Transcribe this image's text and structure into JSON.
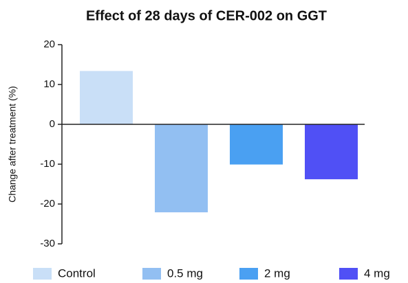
{
  "chart_data": {
    "type": "bar",
    "title": "Effect of 28 days of CER-002 on GGT",
    "y_label": "Change after treatment (%)",
    "categories": [
      "Control",
      "0.5 mg",
      "2 mg",
      "4 mg"
    ],
    "values": [
      13.3,
      -22,
      -10,
      -13.7
    ],
    "colors": [
      "#c9dff7",
      "#92bff2",
      "#4aa0f2",
      "#5050f5"
    ],
    "ylim": [
      -30,
      20
    ],
    "yticks": [
      -30,
      -20,
      -10,
      0,
      10,
      20
    ],
    "grid": false,
    "legend": "bottom"
  }
}
